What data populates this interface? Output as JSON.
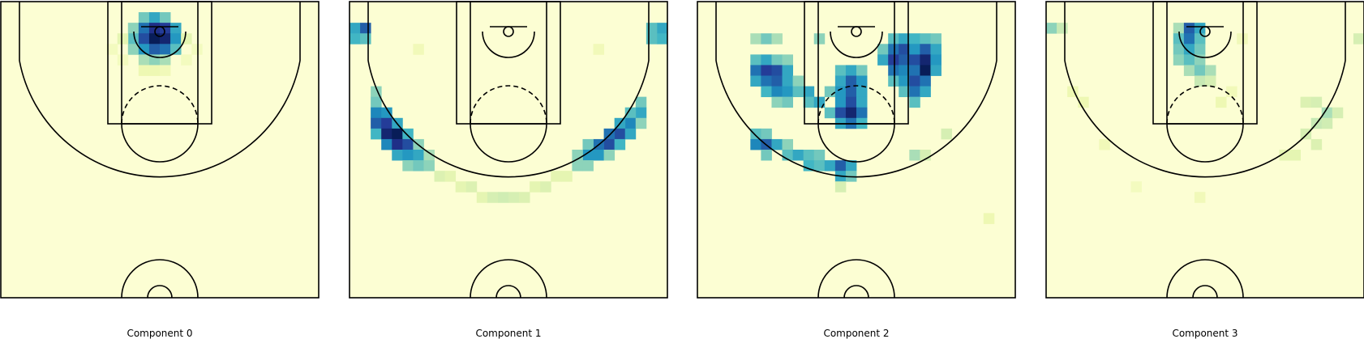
{
  "chart_data": [
    {
      "type": "heatmap",
      "title": "Component 0",
      "xlabel": "",
      "ylabel": "",
      "grid": false,
      "colormap": "YlGnBu",
      "cells": [
        {
          "c": 13,
          "r": 1,
          "v": 0.4
        },
        {
          "c": 14,
          "r": 1,
          "v": 0.55
        },
        {
          "c": 15,
          "r": 1,
          "v": 0.4
        },
        {
          "c": 12,
          "r": 2,
          "v": 0.35
        },
        {
          "c": 13,
          "r": 2,
          "v": 0.7
        },
        {
          "c": 14,
          "r": 2,
          "v": 0.9
        },
        {
          "c": 15,
          "r": 2,
          "v": 0.85
        },
        {
          "c": 16,
          "r": 2,
          "v": 0.55
        },
        {
          "c": 12,
          "r": 3,
          "v": 0.45
        },
        {
          "c": 13,
          "r": 3,
          "v": 0.8
        },
        {
          "c": 14,
          "r": 3,
          "v": 1.0
        },
        {
          "c": 15,
          "r": 3,
          "v": 0.95
        },
        {
          "c": 16,
          "r": 3,
          "v": 0.6
        },
        {
          "c": 17,
          "r": 3,
          "v": 0.15
        },
        {
          "c": 11,
          "r": 3,
          "v": 0.15
        },
        {
          "c": 12,
          "r": 4,
          "v": 0.35
        },
        {
          "c": 13,
          "r": 4,
          "v": 0.6
        },
        {
          "c": 14,
          "r": 4,
          "v": 0.75
        },
        {
          "c": 15,
          "r": 4,
          "v": 0.7
        },
        {
          "c": 16,
          "r": 4,
          "v": 0.45
        },
        {
          "c": 13,
          "r": 5,
          "v": 0.3
        },
        {
          "c": 14,
          "r": 5,
          "v": 0.35
        },
        {
          "c": 15,
          "r": 5,
          "v": 0.3
        },
        {
          "c": 10,
          "r": 4,
          "v": 0.08
        },
        {
          "c": 18,
          "r": 4,
          "v": 0.08
        },
        {
          "c": 11,
          "r": 5,
          "v": 0.08
        },
        {
          "c": 17,
          "r": 5,
          "v": 0.08
        },
        {
          "c": 13,
          "r": 6,
          "v": 0.12
        },
        {
          "c": 14,
          "r": 6,
          "v": 0.12
        },
        {
          "c": 15,
          "r": 6,
          "v": 0.1
        }
      ]
    },
    {
      "type": "heatmap",
      "title": "Component 1",
      "xlabel": "",
      "ylabel": "",
      "grid": false,
      "colormap": "YlGnBu",
      "cells": [
        {
          "c": 0,
          "r": 2,
          "v": 0.55
        },
        {
          "c": 1,
          "r": 2,
          "v": 0.75
        },
        {
          "c": 0,
          "r": 3,
          "v": 0.5
        },
        {
          "c": 1,
          "r": 3,
          "v": 0.45
        },
        {
          "c": 29,
          "r": 2,
          "v": 0.55
        },
        {
          "c": 28,
          "r": 2,
          "v": 0.45
        },
        {
          "c": 29,
          "r": 3,
          "v": 0.5
        },
        {
          "c": 28,
          "r": 3,
          "v": 0.45
        },
        {
          "c": 2,
          "r": 8,
          "v": 0.35
        },
        {
          "c": 2,
          "r": 9,
          "v": 0.4
        },
        {
          "c": 2,
          "r": 10,
          "v": 0.65
        },
        {
          "c": 3,
          "r": 10,
          "v": 0.6
        },
        {
          "c": 2,
          "r": 11,
          "v": 0.75
        },
        {
          "c": 3,
          "r": 11,
          "v": 0.85
        },
        {
          "c": 4,
          "r": 11,
          "v": 0.55
        },
        {
          "c": 2,
          "r": 12,
          "v": 0.5
        },
        {
          "c": 3,
          "r": 12,
          "v": 0.95
        },
        {
          "c": 4,
          "r": 12,
          "v": 1.0
        },
        {
          "c": 5,
          "r": 12,
          "v": 0.5
        },
        {
          "c": 3,
          "r": 13,
          "v": 0.65
        },
        {
          "c": 4,
          "r": 13,
          "v": 0.9
        },
        {
          "c": 5,
          "r": 13,
          "v": 0.8
        },
        {
          "c": 6,
          "r": 13,
          "v": 0.35
        },
        {
          "c": 4,
          "r": 14,
          "v": 0.55
        },
        {
          "c": 5,
          "r": 14,
          "v": 0.6
        },
        {
          "c": 6,
          "r": 14,
          "v": 0.55
        },
        {
          "c": 7,
          "r": 14,
          "v": 0.3
        },
        {
          "c": 5,
          "r": 15,
          "v": 0.35
        },
        {
          "c": 6,
          "r": 15,
          "v": 0.4
        },
        {
          "c": 7,
          "r": 15,
          "v": 0.35
        },
        {
          "c": 27,
          "r": 9,
          "v": 0.4
        },
        {
          "c": 27,
          "r": 10,
          "v": 0.55
        },
        {
          "c": 26,
          "r": 10,
          "v": 0.45
        },
        {
          "c": 26,
          "r": 11,
          "v": 0.65
        },
        {
          "c": 25,
          "r": 11,
          "v": 0.55
        },
        {
          "c": 27,
          "r": 11,
          "v": 0.35
        },
        {
          "c": 25,
          "r": 12,
          "v": 0.8
        },
        {
          "c": 24,
          "r": 12,
          "v": 0.7
        },
        {
          "c": 26,
          "r": 12,
          "v": 0.55
        },
        {
          "c": 24,
          "r": 13,
          "v": 0.8
        },
        {
          "c": 23,
          "r": 13,
          "v": 0.7
        },
        {
          "c": 22,
          "r": 13,
          "v": 0.4
        },
        {
          "c": 25,
          "r": 13,
          "v": 0.5
        },
        {
          "c": 22,
          "r": 14,
          "v": 0.6
        },
        {
          "c": 23,
          "r": 14,
          "v": 0.6
        },
        {
          "c": 21,
          "r": 14,
          "v": 0.35
        },
        {
          "c": 24,
          "r": 14,
          "v": 0.35
        },
        {
          "c": 21,
          "r": 15,
          "v": 0.35
        },
        {
          "c": 22,
          "r": 15,
          "v": 0.35
        },
        {
          "c": 8,
          "r": 16,
          "v": 0.18
        },
        {
          "c": 9,
          "r": 16,
          "v": 0.15
        },
        {
          "c": 10,
          "r": 17,
          "v": 0.15
        },
        {
          "c": 11,
          "r": 17,
          "v": 0.18
        },
        {
          "c": 12,
          "r": 18,
          "v": 0.15
        },
        {
          "c": 13,
          "r": 18,
          "v": 0.2
        },
        {
          "c": 14,
          "r": 18,
          "v": 0.22
        },
        {
          "c": 15,
          "r": 18,
          "v": 0.2
        },
        {
          "c": 16,
          "r": 18,
          "v": 0.18
        },
        {
          "c": 17,
          "r": 17,
          "v": 0.15
        },
        {
          "c": 18,
          "r": 17,
          "v": 0.18
        },
        {
          "c": 19,
          "r": 16,
          "v": 0.15
        },
        {
          "c": 20,
          "r": 16,
          "v": 0.15
        },
        {
          "c": 6,
          "r": 4,
          "v": 0.1
        },
        {
          "c": 23,
          "r": 4,
          "v": 0.1
        }
      ]
    },
    {
      "type": "heatmap",
      "title": "Component 2",
      "xlabel": "",
      "ylabel": "",
      "grid": false,
      "colormap": "YlGnBu",
      "cells": [
        {
          "c": 5,
          "r": 3,
          "v": 0.3
        },
        {
          "c": 6,
          "r": 3,
          "v": 0.4
        },
        {
          "c": 7,
          "r": 3,
          "v": 0.3
        },
        {
          "c": 11,
          "r": 3,
          "v": 0.35
        },
        {
          "c": 18,
          "r": 3,
          "v": 0.45
        },
        {
          "c": 19,
          "r": 3,
          "v": 0.55
        },
        {
          "c": 20,
          "r": 3,
          "v": 0.5
        },
        {
          "c": 21,
          "r": 3,
          "v": 0.45
        },
        {
          "c": 22,
          "r": 3,
          "v": 0.4
        },
        {
          "c": 17,
          "r": 4,
          "v": 0.4
        },
        {
          "c": 18,
          "r": 4,
          "v": 0.7
        },
        {
          "c": 19,
          "r": 4,
          "v": 0.8
        },
        {
          "c": 20,
          "r": 4,
          "v": 0.6
        },
        {
          "c": 21,
          "r": 4,
          "v": 0.75
        },
        {
          "c": 22,
          "r": 4,
          "v": 0.55
        },
        {
          "c": 5,
          "r": 5,
          "v": 0.45
        },
        {
          "c": 6,
          "r": 5,
          "v": 0.55
        },
        {
          "c": 7,
          "r": 5,
          "v": 0.4
        },
        {
          "c": 8,
          "r": 5,
          "v": 0.35
        },
        {
          "c": 17,
          "r": 5,
          "v": 0.55
        },
        {
          "c": 18,
          "r": 5,
          "v": 0.85
        },
        {
          "c": 19,
          "r": 5,
          "v": 0.75
        },
        {
          "c": 20,
          "r": 5,
          "v": 0.8
        },
        {
          "c": 21,
          "r": 5,
          "v": 0.95
        },
        {
          "c": 22,
          "r": 5,
          "v": 0.6
        },
        {
          "c": 5,
          "r": 6,
          "v": 0.7
        },
        {
          "c": 6,
          "r": 6,
          "v": 0.85
        },
        {
          "c": 7,
          "r": 6,
          "v": 0.8
        },
        {
          "c": 8,
          "r": 6,
          "v": 0.55
        },
        {
          "c": 13,
          "r": 6,
          "v": 0.45
        },
        {
          "c": 14,
          "r": 6,
          "v": 0.55
        },
        {
          "c": 15,
          "r": 6,
          "v": 0.4
        },
        {
          "c": 18,
          "r": 6,
          "v": 0.7
        },
        {
          "c": 19,
          "r": 6,
          "v": 0.65
        },
        {
          "c": 20,
          "r": 6,
          "v": 0.7
        },
        {
          "c": 21,
          "r": 6,
          "v": 1.0
        },
        {
          "c": 22,
          "r": 6,
          "v": 0.55
        },
        {
          "c": 5,
          "r": 7,
          "v": 0.55
        },
        {
          "c": 6,
          "r": 7,
          "v": 0.7
        },
        {
          "c": 7,
          "r": 7,
          "v": 0.75
        },
        {
          "c": 8,
          "r": 7,
          "v": 0.55
        },
        {
          "c": 9,
          "r": 7,
          "v": 0.35
        },
        {
          "c": 13,
          "r": 7,
          "v": 0.55
        },
        {
          "c": 14,
          "r": 7,
          "v": 0.75
        },
        {
          "c": 15,
          "r": 7,
          "v": 0.6
        },
        {
          "c": 18,
          "r": 7,
          "v": 0.45
        },
        {
          "c": 19,
          "r": 7,
          "v": 0.6
        },
        {
          "c": 20,
          "r": 7,
          "v": 0.8
        },
        {
          "c": 21,
          "r": 7,
          "v": 0.7
        },
        {
          "c": 6,
          "r": 8,
          "v": 0.5
        },
        {
          "c": 7,
          "r": 8,
          "v": 0.65
        },
        {
          "c": 8,
          "r": 8,
          "v": 0.6
        },
        {
          "c": 9,
          "r": 8,
          "v": 0.45
        },
        {
          "c": 10,
          "r": 8,
          "v": 0.55
        },
        {
          "c": 12,
          "r": 8,
          "v": 0.4
        },
        {
          "c": 13,
          "r": 8,
          "v": 0.6
        },
        {
          "c": 14,
          "r": 8,
          "v": 0.75
        },
        {
          "c": 15,
          "r": 8,
          "v": 0.55
        },
        {
          "c": 19,
          "r": 8,
          "v": 0.45
        },
        {
          "c": 20,
          "r": 8,
          "v": 0.7
        },
        {
          "c": 21,
          "r": 8,
          "v": 0.55
        },
        {
          "c": 7,
          "r": 9,
          "v": 0.35
        },
        {
          "c": 8,
          "r": 9,
          "v": 0.4
        },
        {
          "c": 10,
          "r": 9,
          "v": 0.45
        },
        {
          "c": 11,
          "r": 9,
          "v": 0.55
        },
        {
          "c": 13,
          "r": 9,
          "v": 0.6
        },
        {
          "c": 14,
          "r": 9,
          "v": 0.8
        },
        {
          "c": 15,
          "r": 9,
          "v": 0.55
        },
        {
          "c": 20,
          "r": 9,
          "v": 0.45
        },
        {
          "c": 12,
          "r": 10,
          "v": 0.45
        },
        {
          "c": 13,
          "r": 10,
          "v": 0.8
        },
        {
          "c": 14,
          "r": 10,
          "v": 0.95
        },
        {
          "c": 15,
          "r": 10,
          "v": 0.7
        },
        {
          "c": 13,
          "r": 11,
          "v": 0.55
        },
        {
          "c": 14,
          "r": 11,
          "v": 0.7
        },
        {
          "c": 15,
          "r": 11,
          "v": 0.5
        },
        {
          "c": 5,
          "r": 12,
          "v": 0.45
        },
        {
          "c": 6,
          "r": 12,
          "v": 0.4
        },
        {
          "c": 5,
          "r": 13,
          "v": 0.65
        },
        {
          "c": 6,
          "r": 13,
          "v": 0.75
        },
        {
          "c": 7,
          "r": 13,
          "v": 0.55
        },
        {
          "c": 8,
          "r": 13,
          "v": 0.35
        },
        {
          "c": 6,
          "r": 14,
          "v": 0.4
        },
        {
          "c": 8,
          "r": 14,
          "v": 0.45
        },
        {
          "c": 9,
          "r": 14,
          "v": 0.55
        },
        {
          "c": 10,
          "r": 14,
          "v": 0.45
        },
        {
          "c": 11,
          "r": 14,
          "v": 0.4
        },
        {
          "c": 10,
          "r": 15,
          "v": 0.5
        },
        {
          "c": 11,
          "r": 15,
          "v": 0.45
        },
        {
          "c": 12,
          "r": 15,
          "v": 0.55
        },
        {
          "c": 13,
          "r": 15,
          "v": 0.75
        },
        {
          "c": 14,
          "r": 15,
          "v": 0.55
        },
        {
          "c": 13,
          "r": 16,
          "v": 0.55
        },
        {
          "c": 14,
          "r": 16,
          "v": 0.4
        },
        {
          "c": 13,
          "r": 17,
          "v": 0.2
        },
        {
          "c": 20,
          "r": 14,
          "v": 0.3
        },
        {
          "c": 21,
          "r": 14,
          "v": 0.2
        },
        {
          "c": 23,
          "r": 12,
          "v": 0.2
        },
        {
          "c": 27,
          "r": 20,
          "v": 0.12
        }
      ]
    },
    {
      "type": "heatmap",
      "title": "Component 3",
      "xlabel": "",
      "ylabel": "",
      "grid": false,
      "colormap": "YlGnBu",
      "cells": [
        {
          "c": 0,
          "r": 2,
          "v": 0.35
        },
        {
          "c": 1,
          "r": 2,
          "v": 0.25
        },
        {
          "c": 29,
          "r": 3,
          "v": 0.2
        },
        {
          "c": 12,
          "r": 2,
          "v": 0.3
        },
        {
          "c": 13,
          "r": 2,
          "v": 0.75
        },
        {
          "c": 14,
          "r": 2,
          "v": 0.55
        },
        {
          "c": 12,
          "r": 3,
          "v": 0.45
        },
        {
          "c": 13,
          "r": 3,
          "v": 0.7
        },
        {
          "c": 14,
          "r": 3,
          "v": 0.45
        },
        {
          "c": 12,
          "r": 4,
          "v": 0.4
        },
        {
          "c": 13,
          "r": 4,
          "v": 0.55
        },
        {
          "c": 14,
          "r": 4,
          "v": 0.4
        },
        {
          "c": 12,
          "r": 5,
          "v": 0.35
        },
        {
          "c": 13,
          "r": 5,
          "v": 0.45
        },
        {
          "c": 14,
          "r": 5,
          "v": 0.35
        },
        {
          "c": 13,
          "r": 6,
          "v": 0.3
        },
        {
          "c": 14,
          "r": 6,
          "v": 0.4
        },
        {
          "c": 15,
          "r": 6,
          "v": 0.3
        },
        {
          "c": 14,
          "r": 7,
          "v": 0.25
        },
        {
          "c": 15,
          "r": 7,
          "v": 0.2
        },
        {
          "c": 24,
          "r": 9,
          "v": 0.18
        },
        {
          "c": 25,
          "r": 9,
          "v": 0.2
        },
        {
          "c": 26,
          "r": 10,
          "v": 0.3
        },
        {
          "c": 27,
          "r": 10,
          "v": 0.2
        },
        {
          "c": 25,
          "r": 11,
          "v": 0.25
        },
        {
          "c": 26,
          "r": 11,
          "v": 0.22
        },
        {
          "c": 24,
          "r": 12,
          "v": 0.2
        },
        {
          "c": 25,
          "r": 13,
          "v": 0.18
        },
        {
          "c": 22,
          "r": 14,
          "v": 0.15
        },
        {
          "c": 23,
          "r": 14,
          "v": 0.15
        },
        {
          "c": 2,
          "r": 8,
          "v": 0.12
        },
        {
          "c": 3,
          "r": 9,
          "v": 0.12
        },
        {
          "c": 5,
          "r": 13,
          "v": 0.1
        },
        {
          "c": 16,
          "r": 9,
          "v": 0.12
        },
        {
          "c": 17,
          "r": 8,
          "v": 0.1
        },
        {
          "c": 14,
          "r": 18,
          "v": 0.1
        },
        {
          "c": 8,
          "r": 17,
          "v": 0.08
        },
        {
          "c": 18,
          "r": 3,
          "v": 0.1
        }
      ]
    }
  ],
  "labels": [
    "Component 0",
    "Component 1",
    "Component 2",
    "Component 3"
  ]
}
